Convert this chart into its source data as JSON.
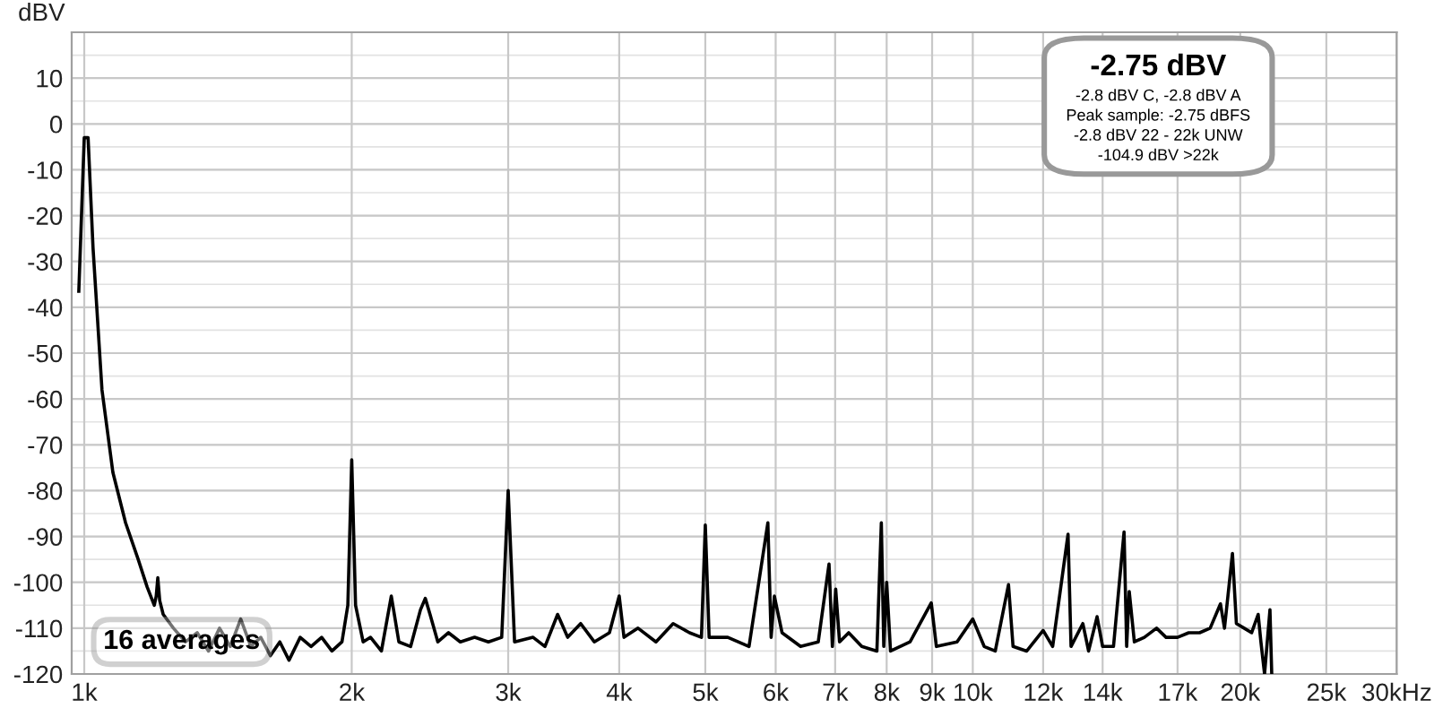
{
  "chart_data": {
    "type": "line",
    "ylabel": "dBV",
    "log": "x",
    "grid": true,
    "marker": "none",
    "line_style": "solid",
    "xlim": [
      0.968,
      30
    ],
    "ylim": [
      -120,
      20
    ],
    "xticks": [
      {
        "value": 1,
        "label": "1k"
      },
      {
        "value": 2,
        "label": "2k"
      },
      {
        "value": 3,
        "label": "3k"
      },
      {
        "value": 4,
        "label": "4k"
      },
      {
        "value": 5,
        "label": "5k"
      },
      {
        "value": 6,
        "label": "6k"
      },
      {
        "value": 7,
        "label": "7k"
      },
      {
        "value": 8,
        "label": "8k"
      },
      {
        "value": 9,
        "label": "9k"
      },
      {
        "value": 10,
        "label": "10k"
      },
      {
        "value": 12,
        "label": "12k"
      },
      {
        "value": 14,
        "label": "14k"
      },
      {
        "value": 17,
        "label": "17k"
      },
      {
        "value": 20,
        "label": "20k"
      },
      {
        "value": 25,
        "label": "25k"
      },
      {
        "value": 30,
        "label": "30kHz"
      }
    ],
    "yticks": [
      -120,
      -110,
      -100,
      -90,
      -80,
      -70,
      -60,
      -50,
      -40,
      -30,
      -20,
      -10,
      0,
      10
    ],
    "annotations": [
      "-2.75 dBV",
      "-2.8 dBV C, -2.8 dBV A",
      "Peak sample: -2.75 dBFS",
      "-2.8 dBV 22 - 22k UNW",
      "-104.9 dBV >22k",
      "16 averages"
    ],
    "series": [
      {
        "color": "#000000",
        "x": [
          0.986,
          1.0,
          1.01,
          1.023,
          1.047,
          1.077,
          1.113,
          1.15,
          1.177,
          1.199,
          1.205,
          1.21,
          1.216,
          1.227,
          1.26,
          1.3,
          1.34,
          1.38,
          1.42,
          1.46,
          1.5,
          1.54,
          1.58,
          1.62,
          1.66,
          1.7,
          1.75,
          1.8,
          1.85,
          1.9,
          1.95,
          1.98,
          2.0,
          2.02,
          2.06,
          2.1,
          2.16,
          2.216,
          2.26,
          2.33,
          2.39,
          2.42,
          2.45,
          2.5,
          2.57,
          2.65,
          2.75,
          2.85,
          2.95,
          3.0,
          3.05,
          3.2,
          3.3,
          3.41,
          3.5,
          3.62,
          3.75,
          3.9,
          4.0,
          4.05,
          4.2,
          4.4,
          4.6,
          4.8,
          4.95,
          5.0,
          5.05,
          5.3,
          5.6,
          5.88,
          5.93,
          5.98,
          6.1,
          6.4,
          6.7,
          6.89,
          6.95,
          7.01,
          7.08,
          7.25,
          7.5,
          7.8,
          7.89,
          7.94,
          8.0,
          8.08,
          8.5,
          8.98,
          9.1,
          9.6,
          10.0,
          10.3,
          10.6,
          10.97,
          11.1,
          11.5,
          12.0,
          12.3,
          12.8,
          12.9,
          13.3,
          13.5,
          13.8,
          14.0,
          14.4,
          14.8,
          14.9,
          15.0,
          15.2,
          15.6,
          16.1,
          16.5,
          17.0,
          17.5,
          18.0,
          18.5,
          19.0,
          19.2,
          19.6,
          19.8,
          20.2,
          20.6,
          20.95,
          21.1,
          21.3,
          21.6,
          21.7
        ],
        "values": [
          -36.5,
          -3,
          -3,
          -27,
          -58,
          -76,
          -87,
          -95,
          -101,
          -105,
          -103,
          -99,
          -104,
          -107,
          -110,
          -113,
          -111,
          -115,
          -110,
          -114,
          -108,
          -114,
          -112,
          -116,
          -113,
          -117,
          -112,
          -114,
          -112,
          -115,
          -113,
          -105,
          -73.3,
          -105,
          -113,
          -112,
          -115,
          -103,
          -113,
          -114,
          -106,
          -103.5,
          -107,
          -113,
          -111,
          -113,
          -112,
          -113,
          -112,
          -80,
          -113,
          -112,
          -114,
          -107,
          -112,
          -109,
          -113,
          -111,
          -103,
          -112,
          -110,
          -113,
          -109,
          -111,
          -112,
          -87.5,
          -112,
          -112,
          -114,
          -87,
          -112,
          -103,
          -111,
          -114,
          -113,
          -96,
          -114,
          -101.5,
          -113,
          -111,
          -114,
          -115,
          -87,
          -114,
          -100,
          -115,
          -113,
          -104.5,
          -114,
          -113,
          -108,
          -114,
          -115,
          -100.5,
          -114,
          -115,
          -110.5,
          -114,
          -89.5,
          -114,
          -109,
          -115,
          -107.5,
          -114,
          -114,
          -89,
          -114,
          -102,
          -113,
          -112,
          -110,
          -112,
          -112,
          -111,
          -111,
          -110,
          -104.7,
          -110,
          -93.7,
          -109,
          -110,
          -111,
          -107,
          -113,
          -120,
          -106,
          -120
        ]
      }
    ]
  }
}
